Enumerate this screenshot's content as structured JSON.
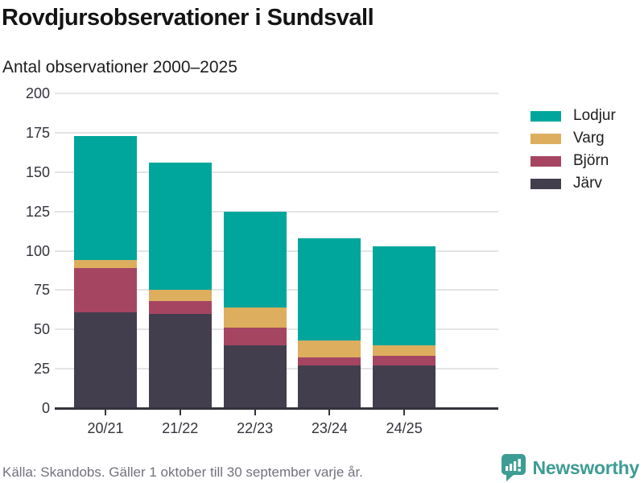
{
  "header": {
    "title": "Rovdjursobservationer i Sundsvall",
    "subtitle": "Antal observationer 2000–2025"
  },
  "chart_data": {
    "type": "bar",
    "stacked": true,
    "title": "Rovdjursobservationer i Sundsvall",
    "subtitle": "Antal observationer 2000–2025",
    "categories": [
      "20/21",
      "21/22",
      "22/23",
      "23/24",
      "24/25"
    ],
    "series": [
      {
        "name": "Lodjur",
        "color": "#00a69b",
        "values": [
          79,
          81,
          61,
          65,
          63
        ]
      },
      {
        "name": "Varg",
        "color": "#dcae5e",
        "values": [
          5,
          7,
          13,
          11,
          7
        ]
      },
      {
        "name": "Björn",
        "color": "#a64562",
        "values": [
          28,
          8,
          11,
          5,
          6
        ]
      },
      {
        "name": "Järv",
        "color": "#423e4e",
        "values": [
          61,
          60,
          40,
          27,
          27
        ]
      }
    ],
    "stack_order_bottom_to_top": [
      "Järv",
      "Björn",
      "Varg",
      "Lodjur"
    ],
    "bar_totals": [
      173,
      156,
      125,
      108,
      103
    ],
    "xlabel": "",
    "ylabel": "Antal observationer",
    "ylim": [
      0,
      200
    ],
    "yticks": [
      0,
      25,
      50,
      75,
      100,
      125,
      150,
      175,
      200
    ],
    "grid": "horizontal",
    "legend_position": "right"
  },
  "footer": {
    "source": "Källa: Skandobs. Gäller 1 oktober till 30 september varje år.",
    "brand": "Newsworthy"
  },
  "colors": {
    "lodjur": "#00a69b",
    "varg": "#dcae5e",
    "bjorn": "#a64562",
    "jarv": "#423e4e",
    "gridline": "#e4e4e4",
    "axis": "#34333c",
    "text": "#1d1d1d",
    "muted_text": "#72727e",
    "brand_teal": "#3d9c94"
  }
}
